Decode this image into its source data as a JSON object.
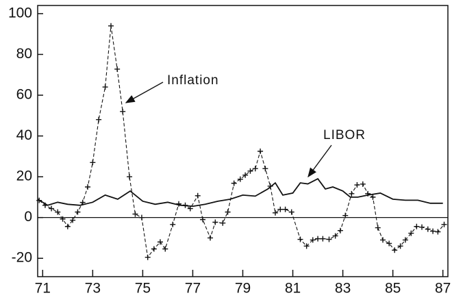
{
  "chart_data": {
    "type": "line",
    "x": [],
    "series": [
      {
        "name": "Inflation",
        "color": "#111111",
        "line_style": "dashed",
        "marker": "+",
        "x": [
          70.86,
          71.1,
          71.35,
          71.6,
          71.8,
          72.0,
          72.2,
          72.4,
          72.6,
          72.8,
          73.0,
          73.24,
          73.5,
          73.73,
          73.98,
          74.2,
          74.47,
          74.7,
          74.96,
          75.2,
          75.45,
          75.7,
          75.9,
          76.2,
          76.44,
          76.7,
          76.9,
          77.2,
          77.4,
          77.7,
          77.9,
          78.2,
          78.4,
          78.65,
          78.9,
          79.1,
          79.3,
          79.5,
          79.7,
          79.9,
          80.1,
          80.3,
          80.5,
          80.7,
          80.95,
          81.3,
          81.55,
          81.8,
          82.0,
          82.2,
          82.45,
          82.7,
          82.9,
          83.1,
          83.35,
          83.57,
          83.8,
          84.0,
          84.2,
          84.4,
          84.6,
          84.85,
          85.07,
          85.3,
          85.5,
          85.73,
          85.95,
          86.16,
          86.4,
          86.6,
          86.8,
          87.05
        ],
        "values": [
          8.4,
          6,
          4.4,
          2.7,
          -0.7,
          -4.4,
          -1.3,
          2.7,
          7.4,
          15,
          27,
          48,
          64,
          94,
          72.8,
          52,
          20,
          1.7,
          0,
          -19.5,
          -15.4,
          -12,
          -15.4,
          -3.4,
          6.7,
          6,
          4.4,
          10.7,
          -1,
          -10,
          -2.3,
          -2.7,
          2.7,
          16.8,
          18.8,
          20.8,
          22.8,
          24,
          32.5,
          24,
          15.4,
          2.3,
          4,
          4,
          2.7,
          -10.7,
          -14,
          -11,
          -10.4,
          -10.4,
          -10.7,
          -9,
          -6.4,
          1,
          11.7,
          16,
          16.4,
          11.7,
          10,
          -5,
          -11,
          -12.7,
          -16,
          -14,
          -11,
          -7.7,
          -4.4,
          -4.7,
          -5.7,
          -6.7,
          -7,
          -3.4
        ]
      },
      {
        "name": "LIBOR",
        "color": "#111111",
        "line_style": "solid",
        "marker": null,
        "x": [
          70.8,
          71.2,
          71.6,
          72.0,
          72.5,
          73.0,
          73.5,
          74.0,
          74.5,
          75.0,
          75.5,
          76.0,
          76.5,
          77.0,
          77.5,
          78.0,
          78.5,
          79.0,
          79.5,
          80.0,
          80.3,
          80.6,
          81.0,
          81.3,
          81.6,
          82.0,
          82.3,
          82.6,
          83.0,
          83.3,
          83.6,
          84.0,
          84.5,
          85.0,
          85.5,
          86.0,
          86.5,
          87.0
        ],
        "values": [
          9,
          6,
          7.5,
          6.5,
          6,
          7.5,
          11,
          9,
          13,
          8,
          6.5,
          7.5,
          6,
          5.5,
          6.5,
          8,
          9,
          11,
          10.5,
          14,
          17,
          11,
          12,
          17,
          16.5,
          19,
          14,
          15,
          13,
          10,
          10,
          11,
          12,
          9,
          8.5,
          8.5,
          7,
          7
        ]
      }
    ],
    "annotations": [
      "Inflation",
      "LIBOR"
    ],
    "xlim": [
      70.8,
      87.2
    ],
    "xticks": [
      71,
      73,
      75,
      77,
      79,
      81,
      83,
      85,
      87
    ],
    "ylim": [
      -29,
      104
    ],
    "yticks": [
      -20,
      0,
      20,
      40,
      60,
      80,
      100
    ],
    "grid": false,
    "legend": false
  }
}
